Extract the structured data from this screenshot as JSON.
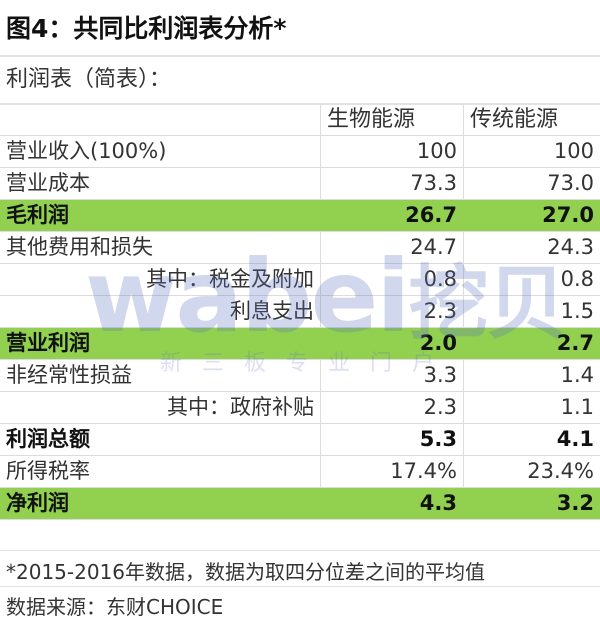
{
  "title": "图4：共同比利润表分析*",
  "subtitle": "利润表（简表）：",
  "columns": [
    "",
    "生物能源",
    "传统能源"
  ],
  "rows": [
    {
      "label": "营业收入(100%)",
      "bio": "100",
      "trad": "100",
      "style": "normal"
    },
    {
      "label": "营业成本",
      "bio": "73.3",
      "trad": "73.0",
      "style": "normal"
    },
    {
      "label": "毛利润",
      "bio": "26.7",
      "trad": "27.0",
      "style": "green"
    },
    {
      "label": "其他费用和损失",
      "bio": "24.7",
      "trad": "24.3",
      "style": "normal"
    },
    {
      "label": "其中：税金及附加",
      "bio": "0.8",
      "trad": "0.8",
      "style": "indent"
    },
    {
      "label": "利息支出",
      "bio": "2.3",
      "trad": "1.5",
      "style": "indent"
    },
    {
      "label": "营业利润",
      "bio": "2.0",
      "trad": "2.7",
      "style": "green"
    },
    {
      "label": "非经常性损益",
      "bio": "3.3",
      "trad": "1.4",
      "style": "normal"
    },
    {
      "label": "其中：政府补贴",
      "bio": "2.3",
      "trad": "1.1",
      "style": "indent"
    },
    {
      "label": "利润总额",
      "bio": "5.3",
      "trad": "4.1",
      "style": "bold"
    },
    {
      "label": "所得税率",
      "bio": "17.4%",
      "trad": "23.4%",
      "style": "normal"
    },
    {
      "label": "净利润",
      "bio": "4.3",
      "trad": "3.2",
      "style": "green"
    }
  ],
  "footnote": "*2015-2016年数据，数据为取四分位差之间的平均值",
  "source": "数据来源：东财CHOICE",
  "watermark": {
    "logo": "wabei挖贝",
    "tagline": "新三板专业门户"
  },
  "colors": {
    "highlight": "#92d050"
  }
}
